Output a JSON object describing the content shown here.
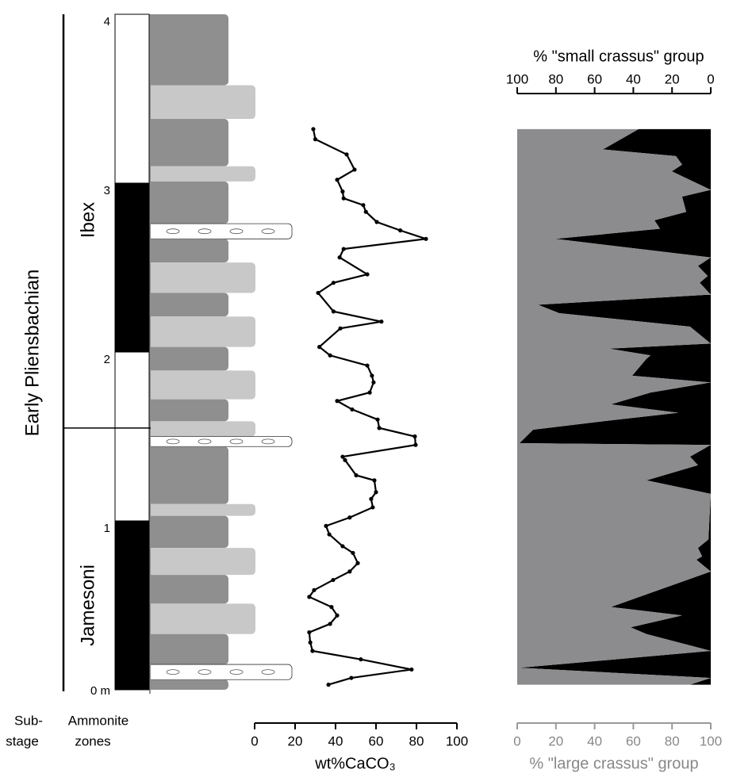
{
  "section": {
    "substage": "Early Pliensbachian",
    "substage_label": [
      "Sub-",
      "stage"
    ],
    "zone_label": [
      "Ammonite",
      "zones"
    ],
    "depth_lim": [
      0,
      4
    ],
    "depth_ticks": [
      {
        "value": 0,
        "label": "0 m"
      },
      1,
      2,
      3,
      4
    ],
    "substage_boundary": 1.55,
    "zones": [
      {
        "name": "Jamesoni",
        "base": 0,
        "top": 1,
        "fill": "#000000"
      },
      {
        "name": null,
        "base": 1,
        "top": 2,
        "fill": "#ffffff"
      },
      {
        "name": "Ibex",
        "base": 2,
        "top": 3,
        "fill": "#000000"
      },
      {
        "name": null,
        "base": 3,
        "top": 4,
        "fill": "#ffffff"
      }
    ],
    "beds": [
      {
        "top": 4,
        "base": 3.58,
        "type": "dark"
      },
      {
        "top": 3.58,
        "base": 3.38,
        "type": "light"
      },
      {
        "top": 3.38,
        "base": 3.1,
        "type": "dark"
      },
      {
        "top": 3.1,
        "base": 3.01,
        "type": "light"
      },
      {
        "top": 3.01,
        "base": 2.76,
        "type": "dark"
      },
      {
        "top": 2.76,
        "base": 2.67,
        "type": "limestone"
      },
      {
        "top": 2.67,
        "base": 2.53,
        "type": "dark"
      },
      {
        "top": 2.53,
        "base": 2.35,
        "type": "light"
      },
      {
        "top": 2.35,
        "base": 2.21,
        "type": "dark"
      },
      {
        "top": 2.21,
        "base": 2.03,
        "type": "light"
      },
      {
        "top": 2.03,
        "base": 1.89,
        "type": "dark"
      },
      {
        "top": 1.89,
        "base": 1.72,
        "type": "light"
      },
      {
        "top": 1.72,
        "base": 1.59,
        "type": "dark"
      },
      {
        "top": 1.59,
        "base": 1.5,
        "type": "light"
      },
      {
        "top": 1.5,
        "base": 1.44,
        "type": "limestone"
      },
      {
        "top": 1.44,
        "base": 1.1,
        "type": "dark"
      },
      {
        "top": 1.1,
        "base": 1.03,
        "type": "light"
      },
      {
        "top": 1.03,
        "base": 0.84,
        "type": "dark"
      },
      {
        "top": 0.84,
        "base": 0.68,
        "type": "light"
      },
      {
        "top": 0.68,
        "base": 0.51,
        "type": "dark"
      },
      {
        "top": 0.51,
        "base": 0.33,
        "type": "light"
      },
      {
        "top": 0.33,
        "base": 0.15,
        "type": "dark"
      },
      {
        "top": 0.15,
        "base": 0.06,
        "type": "limestone"
      },
      {
        "top": 0.06,
        "base": 0,
        "type": "dark"
      }
    ]
  },
  "chart_data": [
    {
      "type": "line",
      "xlabel": "wt%CaCO₃",
      "xlim": [
        0,
        100
      ],
      "xticks": [
        0,
        20,
        40,
        60,
        80,
        100
      ],
      "color": "#000000",
      "depth": [
        3.32,
        3.26,
        3.17,
        3.08,
        3.02,
        2.95,
        2.91,
        2.87,
        2.83,
        2.77,
        2.72,
        2.67,
        2.61,
        2.56,
        2.46,
        2.41,
        2.35,
        2.24,
        2.18,
        2.14,
        2.03,
        1.98,
        1.92,
        1.86,
        1.82,
        1.76,
        1.71,
        1.66,
        1.6,
        1.55,
        1.5,
        1.45,
        1.38,
        1.36,
        1.27,
        1.24,
        1.17,
        1.13,
        1.08,
        1.02,
        0.97,
        0.92,
        0.85,
        0.81,
        0.75,
        0.7,
        0.65,
        0.59,
        0.55,
        0.49,
        0.44,
        0.39,
        0.34,
        0.28,
        0.23,
        0.18,
        0.12,
        0.07,
        0.03
      ],
      "values": [
        29,
        30,
        45.5,
        49.4,
        40.8,
        43.5,
        44,
        53.7,
        55,
        60.4,
        72,
        84.7,
        44,
        42,
        55.7,
        39,
        31.4,
        39,
        62.7,
        42.4,
        32,
        37.3,
        55.7,
        58,
        58.8,
        56.9,
        40.8,
        48.2,
        60.8,
        61.6,
        79.2,
        79.6,
        43.5,
        44.7,
        50.2,
        59.2,
        60,
        57.6,
        58.4,
        47,
        35.3,
        36.9,
        43.5,
        48.6,
        51,
        47,
        38.8,
        29.4,
        27,
        38,
        40.8,
        37.3,
        27,
        27.5,
        28.6,
        52.5,
        77.6,
        47.8,
        36.5
      ]
    },
    {
      "type": "area",
      "xlabel": "% \"large crassus\" group",
      "xlim": [
        0,
        100
      ],
      "xticks": [
        0,
        20,
        40,
        60,
        80,
        100
      ],
      "x2label": "% \"small crassus\" group",
      "x2lim": [
        100,
        0
      ],
      "x2ticks": [
        100,
        80,
        60,
        40,
        20,
        0
      ],
      "color": "#8c8c8e",
      "color2": "#000000",
      "depth": [
        3.32,
        3.2,
        3.16,
        3.11,
        3.07,
        2.96,
        2.92,
        2.83,
        2.78,
        2.73,
        2.67,
        2.56,
        2.51,
        2.45,
        2.41,
        2.34,
        2.28,
        2.23,
        2.15,
        2.05,
        2.02,
        1.98,
        1.96,
        1.86,
        1.82,
        1.76,
        1.69,
        1.64,
        1.59,
        1.54,
        1.46,
        1.45,
        1.38,
        1.33,
        1.24,
        1.16,
        0.89,
        0.84,
        0.79,
        0.77,
        0.7,
        0.49,
        0.44,
        0.37,
        0.33,
        0.23,
        0.13,
        0.07,
        0.03
      ],
      "values": [
        62.7,
        44.3,
        82,
        85.2,
        79.9,
        100,
        85.2,
        87.3,
        70.9,
        73.8,
        19.7,
        100,
        93.4,
        98.4,
        94.3,
        100,
        10.7,
        21.7,
        89.3,
        100,
        47.5,
        68.9,
        66.8,
        59.4,
        100,
        68.9,
        48.4,
        83.2,
        44.3,
        8.2,
        1.2,
        100,
        89.3,
        93.4,
        66.8,
        100,
        98.8,
        93.4,
        95.5,
        92.6,
        100,
        48.4,
        85.2,
        58.6,
        66.8,
        100,
        1.2,
        100,
        89.3
      ]
    }
  ]
}
